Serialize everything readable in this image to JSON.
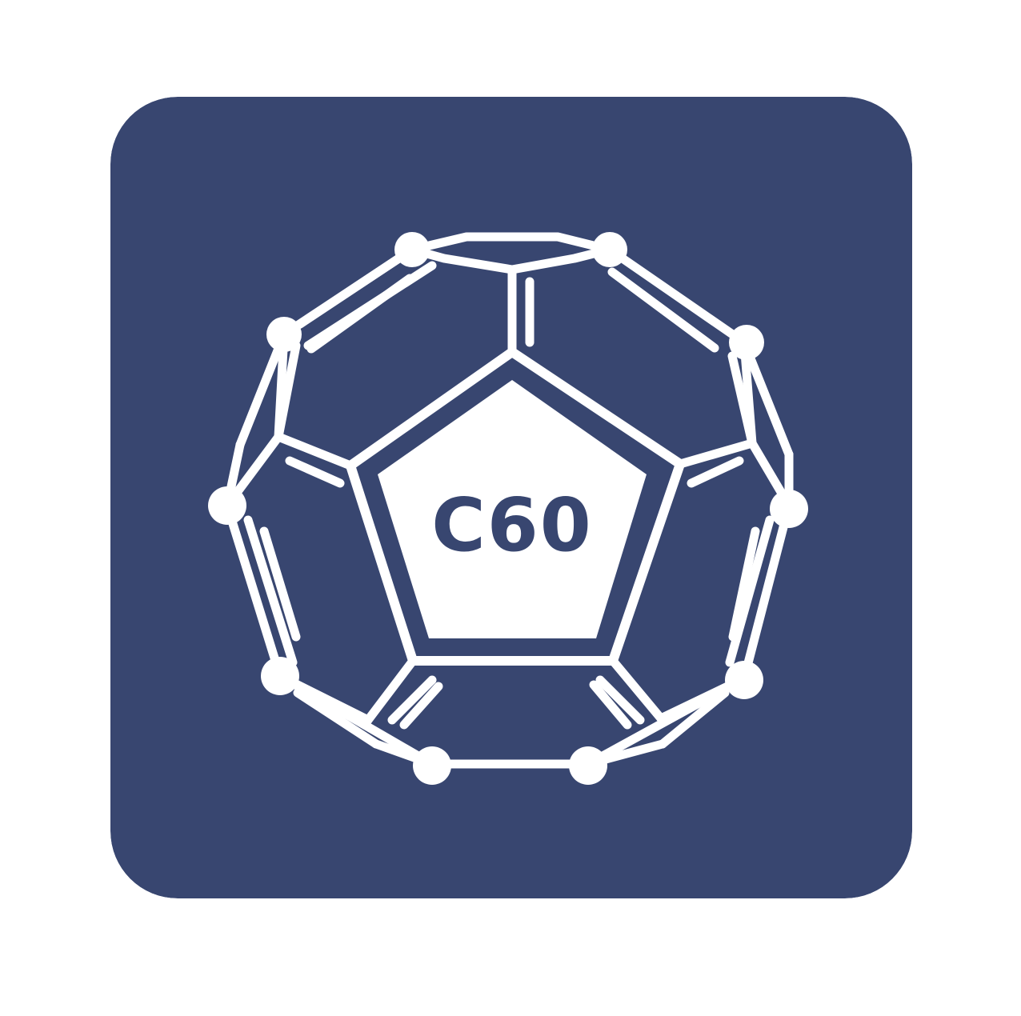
{
  "logo": {
    "label": "C60",
    "background_color": "#384670",
    "foreground_color": "#ffffff",
    "icon": "fullerene-molecule-icon"
  }
}
